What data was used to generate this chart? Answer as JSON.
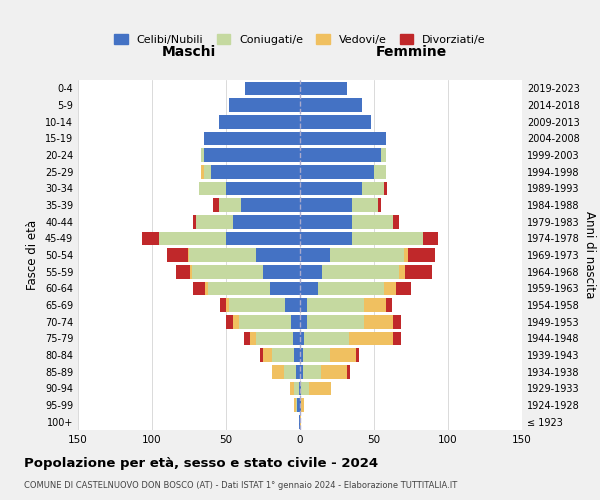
{
  "age_groups": [
    "100+",
    "95-99",
    "90-94",
    "85-89",
    "80-84",
    "75-79",
    "70-74",
    "65-69",
    "60-64",
    "55-59",
    "50-54",
    "45-49",
    "40-44",
    "35-39",
    "30-34",
    "25-29",
    "20-24",
    "15-19",
    "10-14",
    "5-9",
    "0-4"
  ],
  "birth_years": [
    "≤ 1923",
    "1924-1928",
    "1929-1933",
    "1934-1938",
    "1939-1943",
    "1944-1948",
    "1949-1953",
    "1954-1958",
    "1959-1963",
    "1964-1968",
    "1969-1973",
    "1974-1978",
    "1979-1983",
    "1984-1988",
    "1989-1993",
    "1994-1998",
    "1999-2003",
    "2004-2008",
    "2009-2013",
    "2014-2018",
    "2019-2023"
  ],
  "colors": {
    "celibe": "#4472c4",
    "coniugato": "#c5d9a0",
    "vedovo": "#f0c060",
    "divorziato": "#c0282a"
  },
  "maschi": {
    "celibe": [
      1,
      2,
      1,
      3,
      4,
      5,
      6,
      10,
      20,
      25,
      30,
      50,
      45,
      40,
      50,
      60,
      65,
      65,
      55,
      48,
      37
    ],
    "coniugato": [
      0,
      1,
      3,
      8,
      15,
      25,
      35,
      38,
      42,
      48,
      45,
      45,
      25,
      15,
      18,
      5,
      2,
      0,
      0,
      0,
      0
    ],
    "vedovo": [
      0,
      1,
      3,
      8,
      6,
      4,
      4,
      2,
      2,
      1,
      1,
      0,
      0,
      0,
      0,
      2,
      0,
      0,
      0,
      0,
      0
    ],
    "divorziato": [
      0,
      0,
      0,
      0,
      2,
      4,
      5,
      4,
      8,
      10,
      14,
      12,
      2,
      4,
      0,
      0,
      0,
      0,
      0,
      0,
      0
    ]
  },
  "femmine": {
    "nubile": [
      0,
      1,
      1,
      2,
      2,
      3,
      5,
      5,
      12,
      15,
      20,
      35,
      35,
      35,
      42,
      50,
      55,
      58,
      48,
      42,
      32
    ],
    "coniugata": [
      0,
      0,
      5,
      12,
      18,
      30,
      38,
      38,
      45,
      52,
      50,
      48,
      28,
      18,
      15,
      8,
      3,
      0,
      0,
      0,
      0
    ],
    "vedova": [
      1,
      2,
      15,
      18,
      18,
      30,
      20,
      15,
      8,
      4,
      3,
      0,
      0,
      0,
      0,
      0,
      0,
      0,
      0,
      0,
      0
    ],
    "divorziata": [
      0,
      0,
      0,
      2,
      2,
      5,
      5,
      4,
      10,
      18,
      18,
      10,
      4,
      2,
      2,
      0,
      0,
      0,
      0,
      0,
      0
    ]
  },
  "title": "Popolazione per età, sesso e stato civile - 2024",
  "subtitle": "COMUNE DI CASTELNUOVO DON BOSCO (AT) - Dati ISTAT 1° gennaio 2024 - Elaborazione TUTTITALIA.IT",
  "xlabel_left": "Maschi",
  "xlabel_right": "Femmine",
  "ylabel_left": "Fasce di età",
  "ylabel_right": "Anni di nascita",
  "xlim": 150,
  "legend_labels": [
    "Celibi/Nubili",
    "Coniugati/e",
    "Vedovi/e",
    "Divorziati/e"
  ],
  "bg_color": "#f0f0f0",
  "plot_bg_color": "#ffffff"
}
